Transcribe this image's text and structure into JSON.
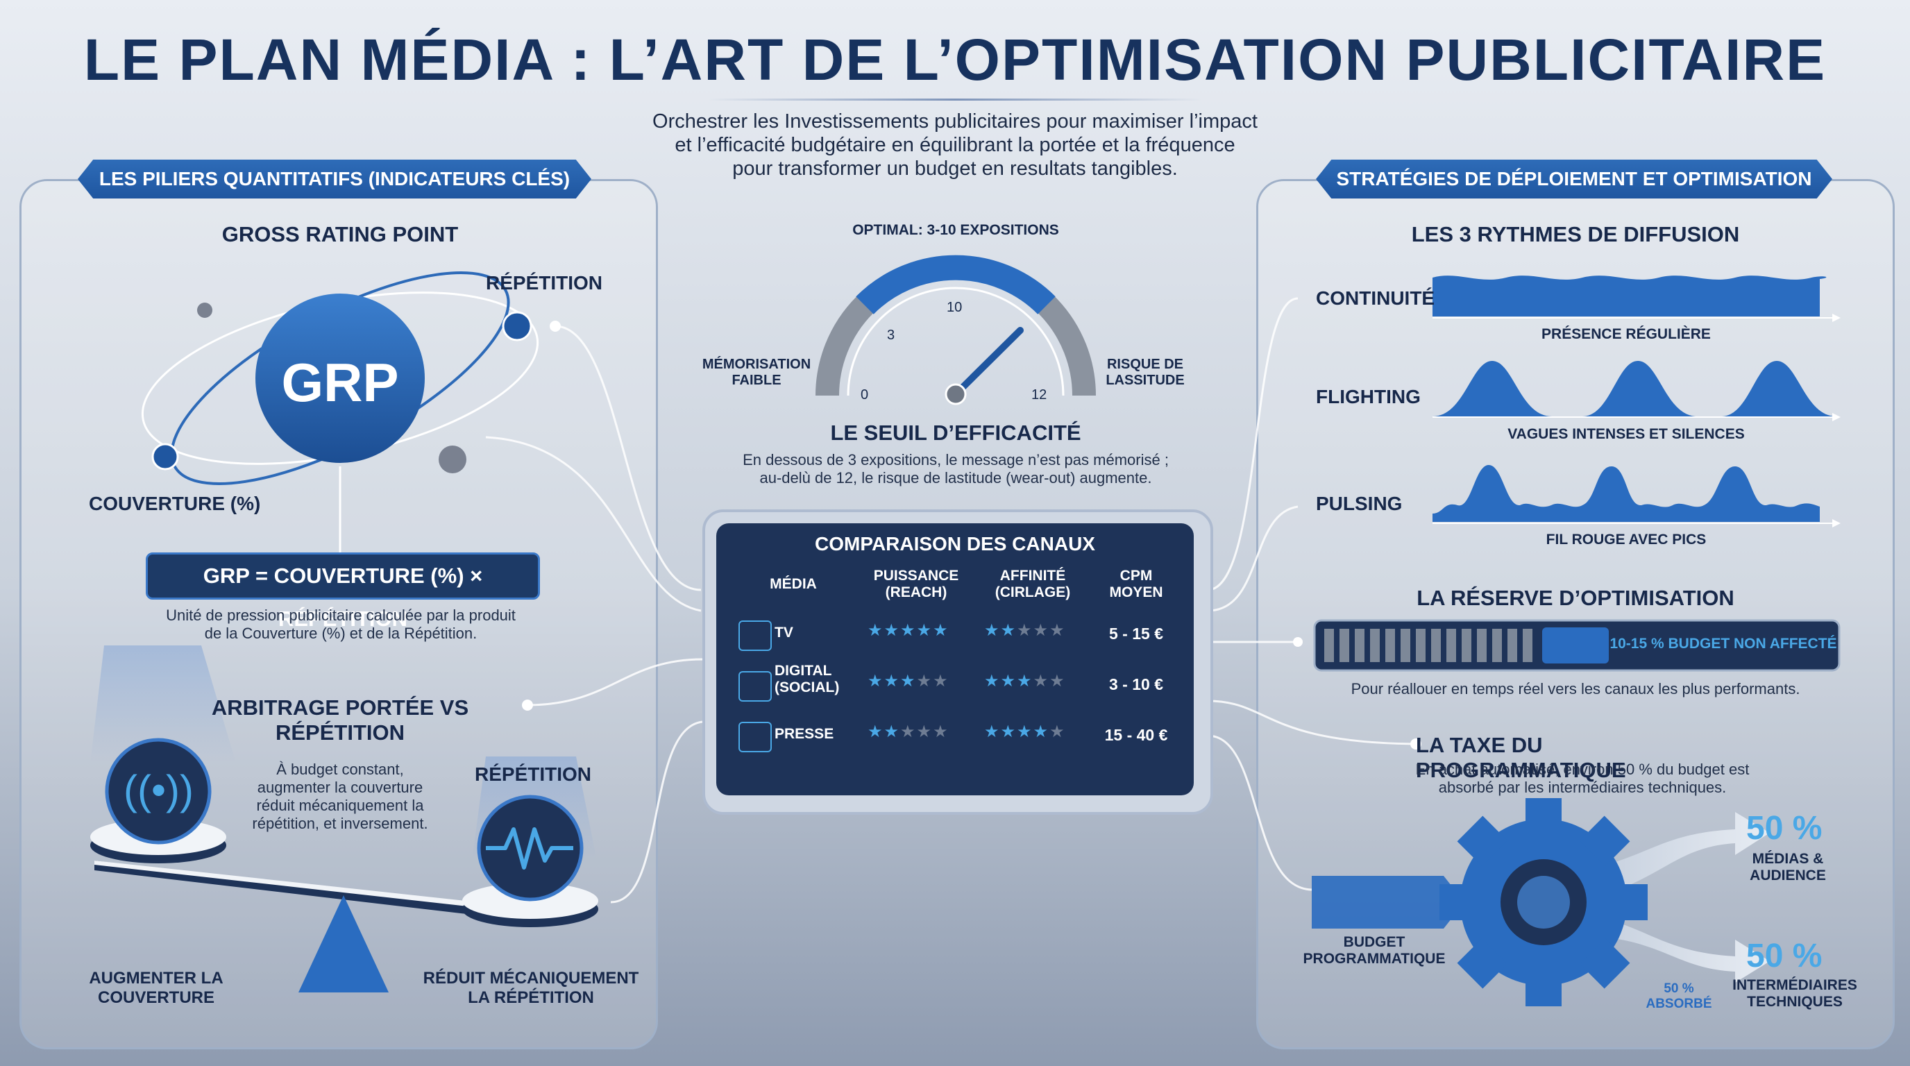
{
  "title": "LE PLAN MÉDIA : L’ART DE L’OPTIMISATION PUBLICITAIRE",
  "subtitle": "Orchestrer les Investissements publicitaires pour maximiser l’impact\net l’efficacité budgétaire en équilibrant la portée et la fréquence\npour transformer un budget en resultats tangibles.",
  "left": {
    "ribbon": "LES PILIERS QUANTITATIFS (INDICATEURS CLÉS)",
    "grp_title": "GROSS RATING POINT",
    "grp": "GRP",
    "repetition": "RÉPÉTITION",
    "couverture": "COUVERTURE (%)",
    "formula": "GRP = COUVERTURE (%) × RÉPÉTITION",
    "formula_desc": "Unité de pression publicitaire calculée par la produit\nde la Couverture (%) et de la Répétition.",
    "arbitrage_title": "ARBITRAGE PORTÉE VS RÉPÉTITION",
    "arbitrage_desc": "À budget constant,\naugmenter la couverture\nréduit mécaniquement la\nrépétition, et inversement.",
    "repetition2": "RÉPÉTITION",
    "augmenter": "AUGMENTER LA\nCOUVERTURE",
    "reduit": "RÉDUIT MÉCANIQUEMENT\nLA RÉPÉTITION"
  },
  "gauge": {
    "optimal": "OPTIMAL: 3-10 EXPOSITIONS",
    "left_label": "MÉMORISATION\nFAIBLE",
    "right_label": "RISQUE DE\nLASSITUDE",
    "ticks": [
      "0",
      "3",
      "10",
      "12"
    ],
    "title": "LE SEUIL D’EFFICACITÉ",
    "desc": "En dessous de 3 expositions, le message n’est pas mémorisé ;\nau-delù de 12, le risque de lastitude (wear-out) augmente."
  },
  "table": {
    "title": "COMPARAISON DES CANAUX",
    "headers": [
      "MÉDIA",
      "PUISSANCE\n(REACH)",
      "AFFINITÉ\n(CIRLAGE)",
      "CPM\nMOYEN"
    ],
    "rows": [
      {
        "media": "TV",
        "icon": "tv-icon",
        "puissance": 5,
        "affinite": 2,
        "cpm": "5 - 15 €"
      },
      {
        "media": "DIGITAL\n(SOCIAL)",
        "icon": "share-icon",
        "puissance": 3,
        "affinite": 3,
        "cpm": "3 - 10 €"
      },
      {
        "media": "PRESSE",
        "icon": "newspaper-icon",
        "puissance": 2,
        "affinite": 4,
        "cpm": "15 - 40 €"
      }
    ]
  },
  "right": {
    "ribbon": "STRATÉGIES DE DÉPLOIEMENT ET OPTIMISATION",
    "rythmes_title": "LES 3 RYTHMES DE DIFFUSION",
    "rythmes": [
      {
        "name": "CONTINUITÉ",
        "caption": "PRÉSENCE RÉGULIÈRE"
      },
      {
        "name": "FLIGHTING",
        "caption": "VAGUES INTENSES ET SILENCES"
      },
      {
        "name": "PULSING",
        "caption": "FIL ROUGE AVEC PICS"
      }
    ],
    "reserve_title": "LA RÉSERVE D’OPTIMISATION",
    "reserve_label": "10-15 % BUDGET NON AFFECTÉ",
    "reserve_desc": "Pour réallouer en temps réel vers les canaux les plus performants.",
    "taxe_title": "LA TAXE DU PROGRAMMATIQUE",
    "taxe_desc": "En achat automatisé, environ 50 % du budget est\nabsorbé par les intermédiaires techniques.",
    "budget": "BUDGET\nPROGRAMMATIQUE",
    "pct1": "50 %",
    "pct1_label": "MÉDIAS &\nAUDIENCE",
    "pct2": "50 %",
    "pct2_label": "INTERMÉDIAIRES\nTECHNIQUES",
    "absorbe": "50 %\nABSORBÉ"
  },
  "colors": {
    "accent": "#2a6cc0",
    "navy": "#1e3358",
    "star_on": "#4aa8e6",
    "star_off": "#6e7c93"
  }
}
